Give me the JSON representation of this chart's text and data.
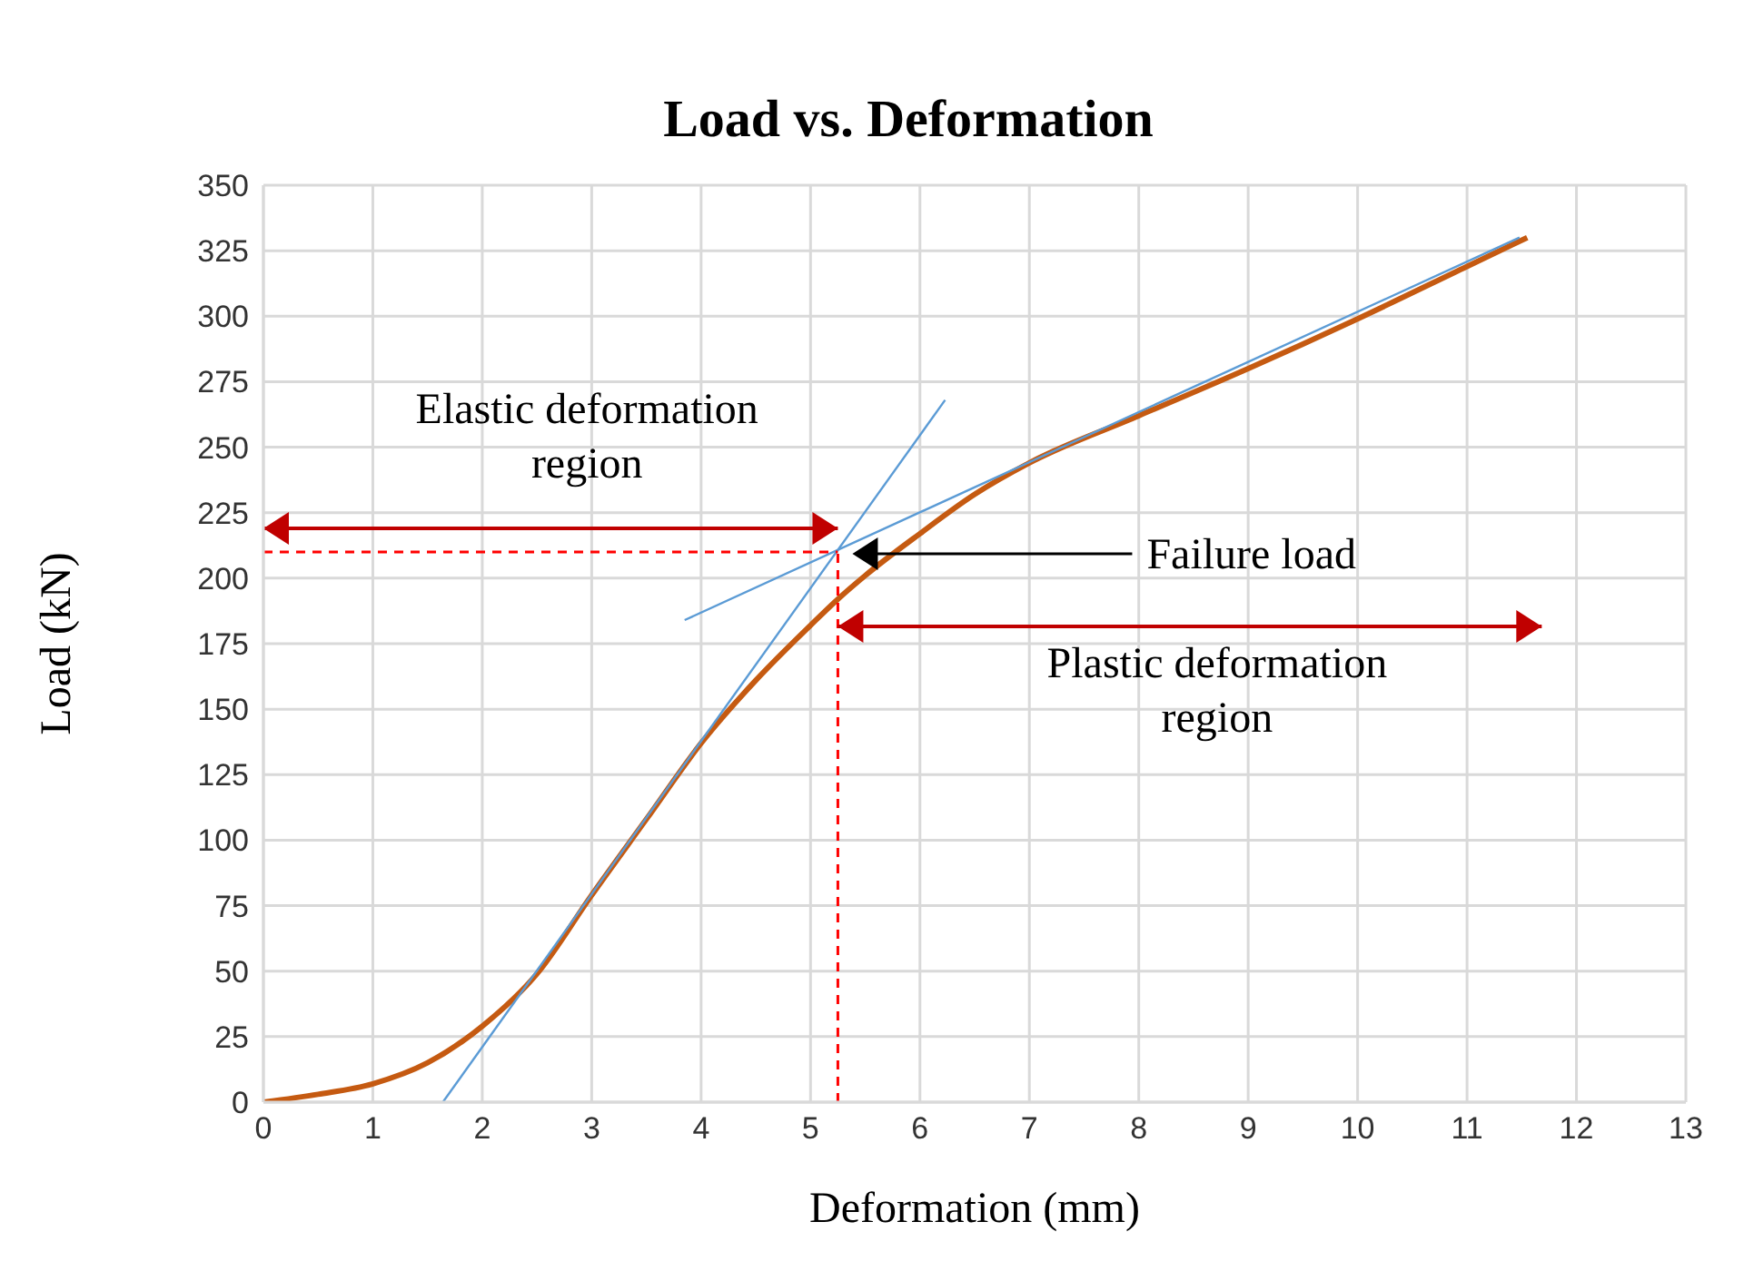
{
  "chart_data": {
    "type": "line",
    "title": "Load vs. Deformation",
    "xlabel": "Deformation (mm)",
    "ylabel": "Load (kN)",
    "xlim": [
      0,
      13
    ],
    "xticks": [
      0,
      1,
      2,
      3,
      4,
      5,
      6,
      7,
      8,
      9,
      10,
      11,
      12,
      13
    ],
    "ylim": [
      0,
      350
    ],
    "yticks": [
      0,
      25,
      50,
      75,
      100,
      125,
      150,
      175,
      200,
      225,
      250,
      275,
      300,
      325,
      350
    ],
    "grid": true,
    "legend": false,
    "marker": "none",
    "line_style": "solid",
    "series": [
      {
        "color": "#c55a11",
        "x": [
          0,
          0.5,
          1,
          1.5,
          2,
          2.5,
          3,
          3.5,
          4,
          4.5,
          5,
          5.25,
          5.5,
          6,
          6.5,
          7,
          8,
          9,
          10,
          11,
          11.55
        ],
        "values": [
          0,
          3,
          7,
          15,
          29,
          49,
          79,
          108,
          137,
          161,
          182,
          192,
          201,
          217,
          232,
          244,
          262,
          280,
          299,
          319,
          330
        ]
      },
      {
        "color": "#5b9bd5",
        "x": [
          1.64,
          6.23
        ],
        "values": [
          0,
          268
        ]
      },
      {
        "color": "#5b9bd5",
        "x": [
          3.85,
          11.48
        ],
        "values": [
          184,
          330
        ]
      }
    ],
    "ref_lines": [
      {
        "axis": "x",
        "value": 5.25,
        "color": "#ff0000",
        "line_style": "dashed"
      },
      {
        "axis": "y",
        "value": 210,
        "color": "#ff0000",
        "line_style": "dashed"
      }
    ],
    "annotations": [
      "Elastic deformation\nregion",
      "Failure load",
      "Plastic deformation\nregion"
    ]
  }
}
